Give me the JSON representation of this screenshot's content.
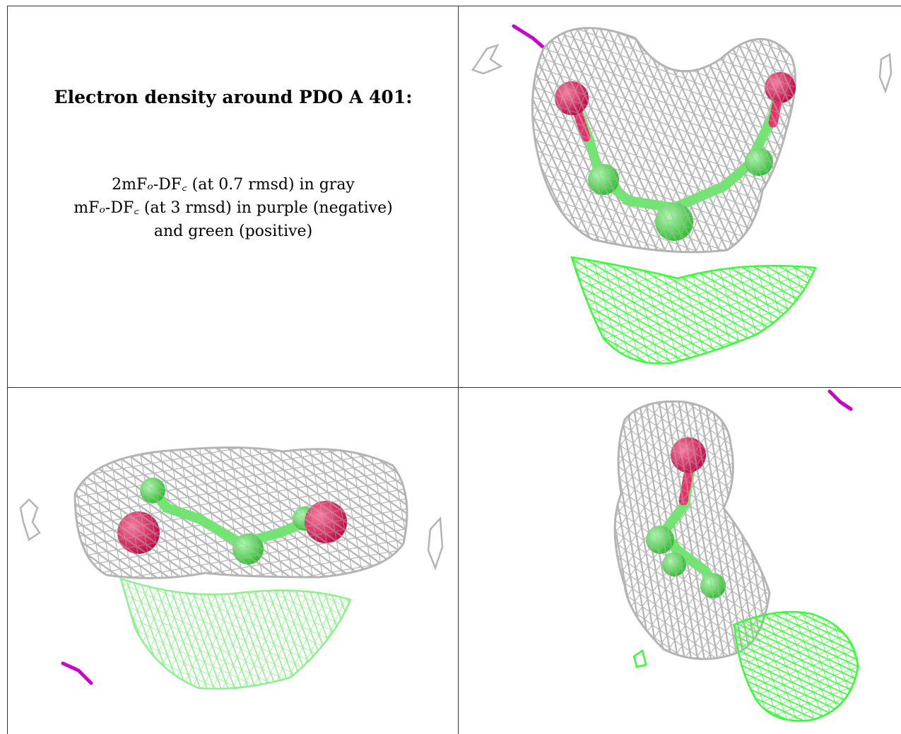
{
  "caption": {
    "title": "Electron density around PDO A 401:",
    "line1": "2mFo-DFc (at 0.7 rmsd) in gray",
    "line2": "mFo-DFc (at 3 rmsd) in purple (negative)",
    "line3": "and green (positive)"
  },
  "colors": {
    "map_2fofc": "#b4b4b4",
    "map_fofc_negative": "#cc00cc",
    "map_fofc_positive": "#33ff33",
    "oxygen": "#e8306a",
    "carbon": "#66ee66"
  },
  "panels": [
    {
      "name": "view-top-right"
    },
    {
      "name": "view-bottom-left"
    },
    {
      "name": "view-bottom-right"
    }
  ]
}
